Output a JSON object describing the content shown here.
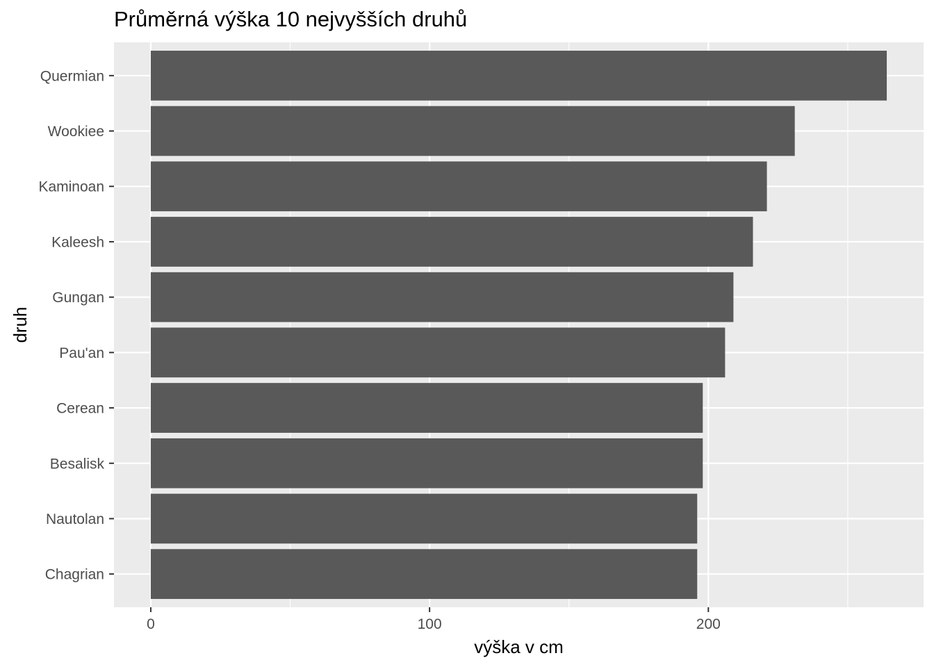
{
  "chart_data": {
    "type": "bar",
    "orientation": "horizontal",
    "title": "Průměrná výška 10 nejvyšších druhů",
    "xlabel": "výška v cm",
    "ylabel": "druh",
    "categories": [
      "Quermian",
      "Wookiee",
      "Kaminoan",
      "Kaleesh",
      "Gungan",
      "Pau'an",
      "Cerean",
      "Besalisk",
      "Nautolan",
      "Chagrian"
    ],
    "values": [
      264,
      231,
      221,
      216,
      209,
      206,
      198,
      198,
      196,
      196
    ],
    "xlim": [
      -13.2,
      277.2
    ],
    "xticks": [
      0,
      100,
      200
    ],
    "xtick_labels": [
      "0",
      "100",
      "200"
    ],
    "grid": true,
    "colors": {
      "bar": "#595959",
      "panel": "#EBEBEB",
      "grid": "#FFFFFF",
      "tick_text": "#4D4D4D",
      "tick_mark": "#333333"
    }
  }
}
